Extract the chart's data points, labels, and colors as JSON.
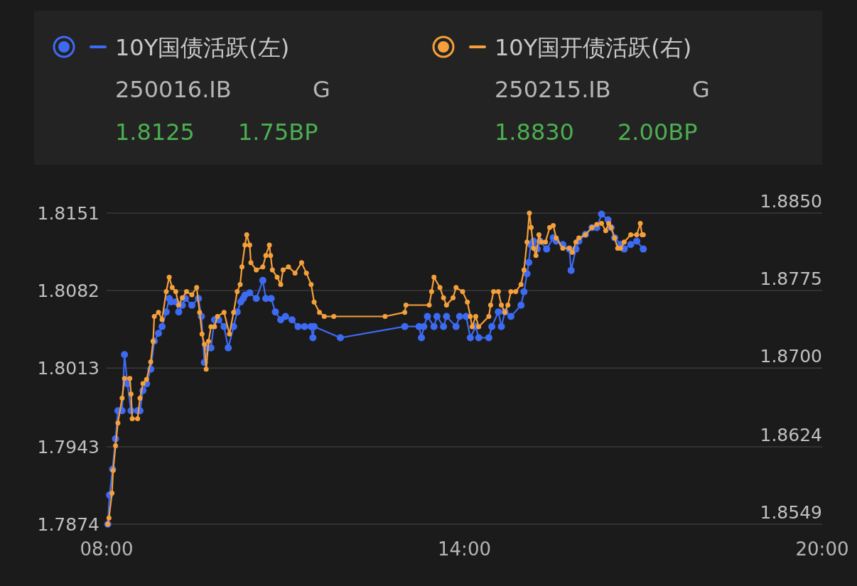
{
  "chart_data": {
    "type": "line",
    "xlim": [
      8,
      20
    ],
    "xticks": [
      {
        "value": 8,
        "label": "08:00"
      },
      {
        "value": 14,
        "label": "14:00"
      },
      {
        "value": 20,
        "label": "20:00"
      }
    ],
    "ylim": [
      1.7874,
      1.8151
    ],
    "yticks": [
      1.7874,
      1.7943,
      1.8013,
      1.8082,
      1.8151
    ],
    "y2lim": [
      1.8549,
      1.885
    ],
    "y2ticks": [
      1.8549,
      1.8624,
      {
        "value": 1.87,
        "label": "1.8700"
      },
      1.8775,
      {
        "value": 1.885,
        "label": "1.8850"
      }
    ],
    "grid": "y",
    "legend": "top",
    "marker": "circle",
    "line_style": "solid",
    "annotations": [
      "250016.IB",
      "G",
      "1.8125",
      "1.75BP",
      "250215.IB",
      "G",
      "1.8830",
      "2.00BP"
    ],
    "series": [
      {
        "name": "10Y国债活跃(左)",
        "color": "#3d6af2",
        "axis": "y",
        "x": [
          8.02,
          8.05,
          8.1,
          8.15,
          8.19,
          8.26,
          8.3,
          8.35,
          8.41,
          8.52,
          8.56,
          8.61,
          8.67,
          8.74,
          8.8,
          8.87,
          8.93,
          9.0,
          9.05,
          9.08,
          9.16,
          9.21,
          9.27,
          9.32,
          9.43,
          9.54,
          9.59,
          9.64,
          9.7,
          9.75,
          9.81,
          9.88,
          9.97,
          10.04,
          10.13,
          10.19,
          10.25,
          10.29,
          10.32,
          10.4,
          10.51,
          10.62,
          10.67,
          10.76,
          10.83,
          10.92,
          11.0,
          11.11,
          11.21,
          11.32,
          11.43,
          11.46,
          11.48,
          11.92,
          13.0,
          13.24,
          13.28,
          13.32,
          13.38,
          13.49,
          13.54,
          13.65,
          13.7,
          13.86,
          13.92,
          14.03,
          14.1,
          14.19,
          14.24,
          14.41,
          14.46,
          14.57,
          14.62,
          14.68,
          14.78,
          14.95,
          15.0,
          15.05,
          15.08,
          15.11,
          15.16,
          15.22,
          15.27,
          15.38,
          15.49,
          15.54,
          15.65,
          15.76,
          15.79,
          15.87,
          15.92,
          16.03,
          16.14,
          16.22,
          16.3,
          16.41,
          16.46,
          16.52,
          16.62,
          16.68,
          16.79,
          16.89,
          17.0
        ],
        "values": [
          1.7874,
          1.79,
          1.7923,
          1.795,
          1.7975,
          1.7975,
          1.8025,
          1.7999,
          1.7975,
          1.7975,
          1.7975,
          1.7993,
          1.7999,
          1.8012,
          1.8037,
          1.8044,
          1.805,
          1.8063,
          1.8075,
          1.8072,
          1.8072,
          1.8063,
          1.8069,
          1.8075,
          1.8069,
          1.8075,
          1.8059,
          1.8018,
          1.8031,
          1.8031,
          1.8056,
          1.8056,
          1.805,
          1.8031,
          1.805,
          1.8063,
          1.8072,
          1.8075,
          1.8078,
          1.808,
          1.8075,
          1.8091,
          1.8075,
          1.8075,
          1.8063,
          1.8056,
          1.8059,
          1.8056,
          1.805,
          1.805,
          1.805,
          1.804,
          1.805,
          1.804,
          1.805,
          1.805,
          1.804,
          1.805,
          1.8059,
          1.805,
          1.8059,
          1.805,
          1.8059,
          1.805,
          1.8059,
          1.8059,
          1.804,
          1.805,
          1.804,
          1.804,
          1.805,
          1.8063,
          1.805,
          1.8063,
          1.8059,
          1.8069,
          1.8081,
          1.8097,
          1.8107,
          1.8123,
          1.8126,
          1.8119,
          1.8126,
          1.8119,
          1.8129,
          1.8126,
          1.8123,
          1.8119,
          1.81,
          1.8119,
          1.8126,
          1.8132,
          1.8138,
          1.8138,
          1.815,
          1.8145,
          1.8138,
          1.8129,
          1.8123,
          1.8119,
          1.8123,
          1.8126,
          1.8119
        ]
      },
      {
        "name": "10Y国开债活跃(右)",
        "color": "#f5a03a",
        "axis": "y2",
        "x": [
          8.02,
          8.04,
          8.09,
          8.11,
          8.15,
          8.19,
          8.26,
          8.3,
          8.39,
          8.41,
          8.43,
          8.52,
          8.56,
          8.61,
          8.67,
          8.74,
          8.78,
          8.8,
          8.87,
          8.93,
          9.0,
          9.05,
          9.1,
          9.16,
          9.21,
          9.27,
          9.34,
          9.43,
          9.51,
          9.56,
          9.6,
          9.64,
          9.67,
          9.71,
          9.75,
          9.81,
          9.86,
          9.97,
          10.06,
          10.13,
          10.19,
          10.24,
          10.27,
          10.32,
          10.35,
          10.4,
          10.42,
          10.51,
          10.62,
          10.67,
          10.73,
          10.75,
          10.78,
          10.86,
          10.92,
          10.96,
          11.05,
          11.16,
          11.27,
          11.35,
          11.43,
          11.48,
          11.57,
          11.65,
          11.81,
          12.67,
          13.0,
          13.02,
          13.41,
          13.45,
          13.49,
          13.59,
          13.65,
          13.7,
          13.81,
          13.86,
          13.97,
          14.05,
          14.1,
          14.13,
          14.19,
          14.24,
          14.41,
          14.44,
          14.49,
          14.57,
          14.62,
          14.68,
          14.73,
          14.78,
          14.86,
          14.95,
          15.0,
          15.05,
          15.09,
          15.12,
          15.16,
          15.2,
          15.25,
          15.29,
          15.36,
          15.43,
          15.49,
          15.54,
          15.65,
          15.76,
          15.81,
          15.87,
          15.92,
          16.03,
          16.14,
          16.22,
          16.3,
          16.37,
          16.42,
          16.46,
          16.52,
          16.57,
          16.62,
          16.68,
          16.79,
          16.89,
          16.95,
          16.98,
          17.0
        ],
        "values": [
          1.8549,
          1.8555,
          1.8579,
          1.8601,
          1.8625,
          1.8647,
          1.8671,
          1.869,
          1.869,
          1.8675,
          1.8651,
          1.8651,
          1.8671,
          1.8685,
          1.8689,
          1.8706,
          1.8726,
          1.875,
          1.8754,
          1.8747,
          1.8774,
          1.8788,
          1.8778,
          1.8774,
          1.8761,
          1.8768,
          1.8774,
          1.8771,
          1.8778,
          1.8754,
          1.8733,
          1.8723,
          1.8699,
          1.8726,
          1.874,
          1.874,
          1.875,
          1.8754,
          1.8733,
          1.8754,
          1.8774,
          1.8781,
          1.8798,
          1.8819,
          1.8829,
          1.8819,
          1.8802,
          1.8795,
          1.8798,
          1.8809,
          1.8819,
          1.8809,
          1.8795,
          1.8788,
          1.8781,
          1.8795,
          1.8798,
          1.8792,
          1.8802,
          1.8792,
          1.8781,
          1.8764,
          1.8754,
          1.875,
          1.875,
          1.875,
          1.8754,
          1.8761,
          1.8761,
          1.8774,
          1.8788,
          1.8778,
          1.8768,
          1.8761,
          1.8768,
          1.8778,
          1.8774,
          1.8764,
          1.875,
          1.874,
          1.875,
          1.874,
          1.875,
          1.8761,
          1.8774,
          1.8774,
          1.8761,
          1.8754,
          1.8761,
          1.8774,
          1.8774,
          1.8781,
          1.8795,
          1.8822,
          1.885,
          1.8836,
          1.8816,
          1.8809,
          1.8829,
          1.8822,
          1.8822,
          1.8836,
          1.8838,
          1.8826,
          1.8816,
          1.8816,
          1.8812,
          1.8822,
          1.8826,
          1.8829,
          1.8836,
          1.8839,
          1.884,
          1.8833,
          1.884,
          1.8836,
          1.8826,
          1.8816,
          1.8816,
          1.8822,
          1.8829,
          1.8829,
          1.884,
          1.8829,
          1.8829
        ]
      }
    ]
  }
}
